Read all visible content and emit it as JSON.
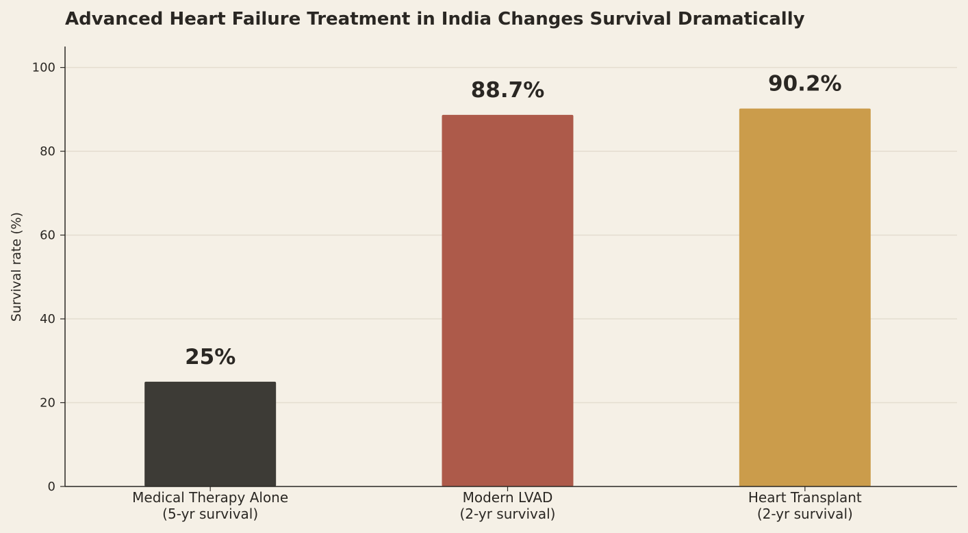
{
  "chart_data": {
    "type": "bar",
    "title": "Advanced Heart Failure Treatment in India Changes Survival Dramatically",
    "xlabel": "",
    "ylabel": "Survival rate (%)",
    "ylim": [
      0,
      105
    ],
    "yticks": [
      0,
      20,
      40,
      60,
      80,
      100
    ],
    "grid": true,
    "categories": [
      [
        "Medical Therapy Alone",
        "(5-yr survival)"
      ],
      [
        "Modern LVAD",
        "(2-yr survival)"
      ],
      [
        "Heart Transplant",
        "(2-yr survival)"
      ]
    ],
    "values": [
      25,
      88.7,
      90.2
    ],
    "data_labels": [
      "25%",
      "88.7%",
      "90.2%"
    ],
    "colors": [
      "#3d3b36",
      "#ad5a4a",
      "#cb9c4b"
    ]
  }
}
